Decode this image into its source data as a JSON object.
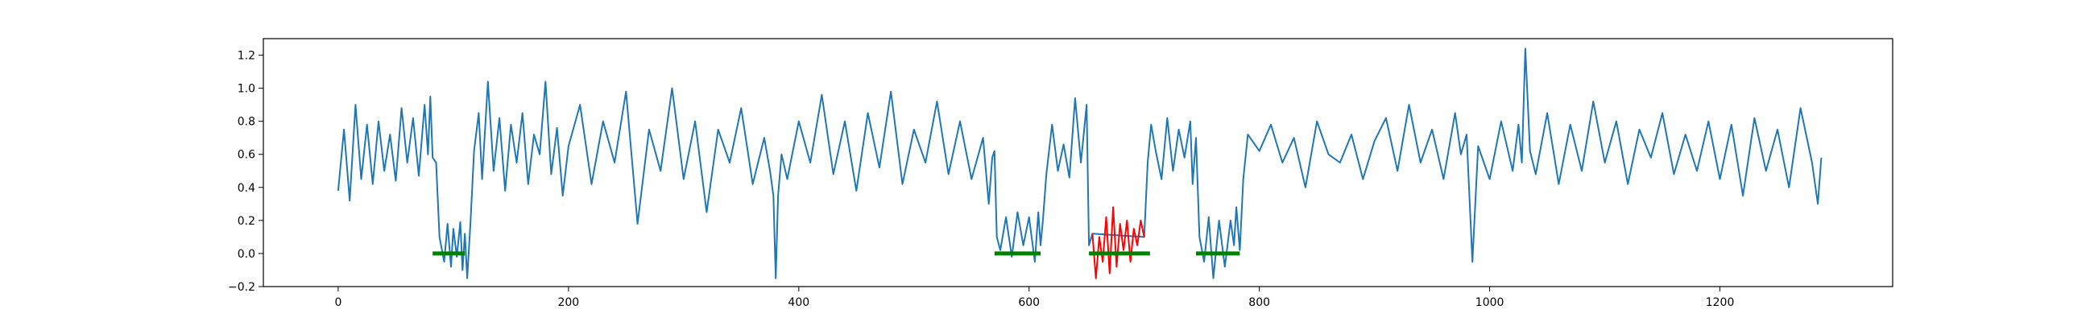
{
  "chart_data": {
    "type": "line",
    "title": "",
    "xlabel": "",
    "ylabel": "",
    "xlim": [
      -65,
      1350
    ],
    "ylim": [
      -0.2,
      1.3
    ],
    "x_ticks": [
      0,
      200,
      400,
      600,
      800,
      1000,
      1200
    ],
    "y_ticks": [
      -0.2,
      0.0,
      0.2,
      0.4,
      0.6,
      0.8,
      1.0,
      1.2
    ],
    "x_tick_labels": [
      "0",
      "200",
      "400",
      "600",
      "800",
      "1000",
      "1200"
    ],
    "y_tick_labels": [
      "−0.2",
      "0.0",
      "0.2",
      "0.4",
      "0.6",
      "0.8",
      "1.0",
      "1.2"
    ],
    "grid": false,
    "legend": "none",
    "colors": {
      "signal": "#1f77b4",
      "red_segment": "#ff0000",
      "green_marker": "#008000",
      "axis": "#000000"
    },
    "series": [
      {
        "type": "line",
        "color": "#1f77b4",
        "x": [
          0,
          5,
          10,
          15,
          20,
          25,
          30,
          35,
          40,
          45,
          50,
          55,
          60,
          65,
          70,
          75,
          78,
          80,
          82,
          85,
          88,
          92,
          95,
          98,
          100,
          103,
          106,
          108,
          110,
          112,
          115,
          118,
          122,
          125,
          130,
          135,
          140,
          145,
          150,
          155,
          160,
          165,
          170,
          175,
          180,
          185,
          190,
          195,
          200,
          210,
          220,
          230,
          240,
          250,
          260,
          270,
          280,
          290,
          300,
          310,
          320,
          330,
          340,
          350,
          360,
          370,
          375,
          378,
          380,
          382,
          385,
          390,
          400,
          410,
          420,
          430,
          440,
          450,
          460,
          470,
          480,
          490,
          500,
          510,
          520,
          530,
          540,
          550,
          560,
          565,
          568,
          570,
          572,
          575,
          580,
          585,
          590,
          595,
          600,
          605,
          608,
          610,
          612,
          615,
          620,
          625,
          630,
          635,
          640,
          645,
          650,
          652,
          655,
          700,
          703,
          706,
          710,
          715,
          720,
          725,
          730,
          735,
          740,
          742,
          745,
          748,
          752,
          756,
          760,
          765,
          770,
          775,
          778,
          780,
          783,
          786,
          790,
          800,
          810,
          820,
          830,
          840,
          850,
          860,
          870,
          880,
          890,
          900,
          910,
          920,
          930,
          940,
          950,
          960,
          970,
          975,
          980,
          985,
          990,
          1000,
          1010,
          1020,
          1025,
          1028,
          1031,
          1035,
          1040,
          1050,
          1060,
          1070,
          1080,
          1090,
          1100,
          1110,
          1120,
          1130,
          1140,
          1150,
          1160,
          1170,
          1180,
          1190,
          1200,
          1210,
          1220,
          1230,
          1240,
          1250,
          1260,
          1270,
          1280,
          1285,
          1288
        ],
        "y": [
          0.38,
          0.75,
          0.32,
          0.9,
          0.45,
          0.78,
          0.42,
          0.8,
          0.5,
          0.72,
          0.44,
          0.88,
          0.55,
          0.82,
          0.47,
          0.9,
          0.6,
          0.95,
          0.58,
          0.55,
          0.1,
          -0.05,
          0.18,
          -0.08,
          0.15,
          -0.02,
          0.19,
          -0.1,
          0.12,
          -0.15,
          0.2,
          0.62,
          0.85,
          0.45,
          1.04,
          0.5,
          0.82,
          0.38,
          0.78,
          0.55,
          0.85,
          0.42,
          0.72,
          0.6,
          1.04,
          0.48,
          0.76,
          0.35,
          0.65,
          0.9,
          0.42,
          0.8,
          0.55,
          0.98,
          0.18,
          0.75,
          0.5,
          1.0,
          0.45,
          0.8,
          0.25,
          0.75,
          0.55,
          0.88,
          0.42,
          0.7,
          0.5,
          0.35,
          -0.15,
          0.35,
          0.6,
          0.45,
          0.8,
          0.55,
          0.96,
          0.48,
          0.8,
          0.38,
          0.85,
          0.52,
          0.98,
          0.42,
          0.75,
          0.55,
          0.92,
          0.48,
          0.8,
          0.45,
          0.7,
          0.3,
          0.58,
          0.62,
          0.1,
          0.02,
          0.22,
          -0.02,
          0.25,
          0.05,
          0.22,
          -0.05,
          0.25,
          0.05,
          0.2,
          0.48,
          0.78,
          0.5,
          0.66,
          0.46,
          0.94,
          0.55,
          0.9,
          0.05,
          0.12,
          0.1,
          0.55,
          0.78,
          0.62,
          0.45,
          0.82,
          0.5,
          0.75,
          0.58,
          0.8,
          0.42,
          0.7,
          0.1,
          -0.05,
          0.22,
          -0.15,
          0.2,
          -0.08,
          0.2,
          0.05,
          0.28,
          0.02,
          0.45,
          0.72,
          0.62,
          0.78,
          0.55,
          0.7,
          0.4,
          0.8,
          0.6,
          0.55,
          0.72,
          0.45,
          0.68,
          0.82,
          0.5,
          0.9,
          0.55,
          0.75,
          0.45,
          0.85,
          0.6,
          0.72,
          -0.05,
          0.65,
          0.45,
          0.8,
          0.5,
          0.78,
          0.55,
          1.24,
          0.62,
          0.48,
          0.85,
          0.42,
          0.78,
          0.5,
          0.92,
          0.55,
          0.8,
          0.42,
          0.75,
          0.58,
          0.85,
          0.48,
          0.72,
          0.5,
          0.8,
          0.45,
          0.78,
          0.35,
          0.82,
          0.5,
          0.75,
          0.4,
          0.88,
          0.55,
          0.3,
          0.58
        ]
      },
      {
        "type": "line",
        "color": "#ff0000",
        "x": [
          655,
          658,
          661,
          664,
          667,
          670,
          673,
          676,
          679,
          682,
          685,
          688,
          691,
          694,
          697,
          700
        ],
        "y": [
          0.12,
          -0.15,
          0.1,
          -0.05,
          0.22,
          -0.12,
          0.28,
          -0.08,
          0.18,
          0.02,
          0.2,
          -0.05,
          0.15,
          0.05,
          0.2,
          0.1
        ]
      },
      {
        "type": "segment",
        "color": "#008000",
        "x": [
          82,
          110
        ],
        "y": [
          0,
          0
        ]
      },
      {
        "type": "segment",
        "color": "#008000",
        "x": [
          570,
          610
        ],
        "y": [
          0,
          0
        ]
      },
      {
        "type": "segment",
        "color": "#008000",
        "x": [
          652,
          705
        ],
        "y": [
          0,
          0
        ]
      },
      {
        "type": "segment",
        "color": "#008000",
        "x": [
          745,
          783
        ],
        "y": [
          0,
          0
        ]
      }
    ]
  }
}
